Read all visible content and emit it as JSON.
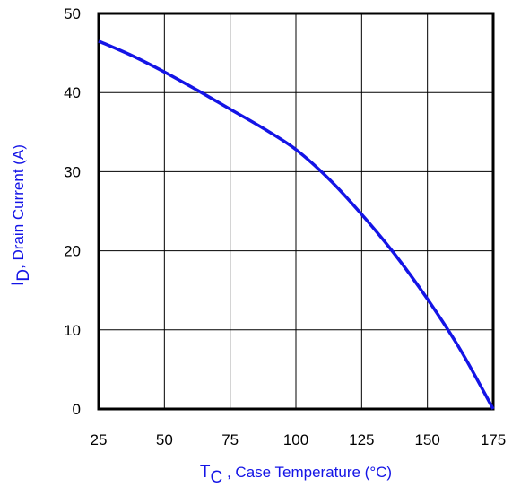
{
  "chart_data": {
    "type": "line",
    "xlabel": {
      "main": "T",
      "sub": "C",
      "rest": " , Case Temperature (°C)"
    },
    "ylabel": {
      "main": "I",
      "sub": "D",
      "rest": ",  Drain Current (A)"
    },
    "xlim": [
      25,
      175
    ],
    "ylim": [
      0,
      50
    ],
    "x_ticks": [
      "25",
      "50",
      "75",
      "100",
      "125",
      "150",
      "175"
    ],
    "y_ticks": [
      "0",
      "10",
      "20",
      "30",
      "40",
      "50"
    ],
    "grid": true,
    "series": [
      {
        "color": "#1414e6",
        "x": [
          25,
          37.5,
          50,
          62.5,
          75,
          87.5,
          100,
          112.5,
          125,
          137.5,
          150,
          162.5,
          175
        ],
        "y": [
          46.5,
          44.7,
          42.6,
          40.3,
          37.9,
          35.5,
          32.8,
          29.1,
          24.6,
          19.6,
          13.9,
          7.5,
          0
        ]
      }
    ],
    "colors": {
      "axis_title": "#1414e6",
      "curve": "#1414e6",
      "grid": "#000000"
    }
  }
}
